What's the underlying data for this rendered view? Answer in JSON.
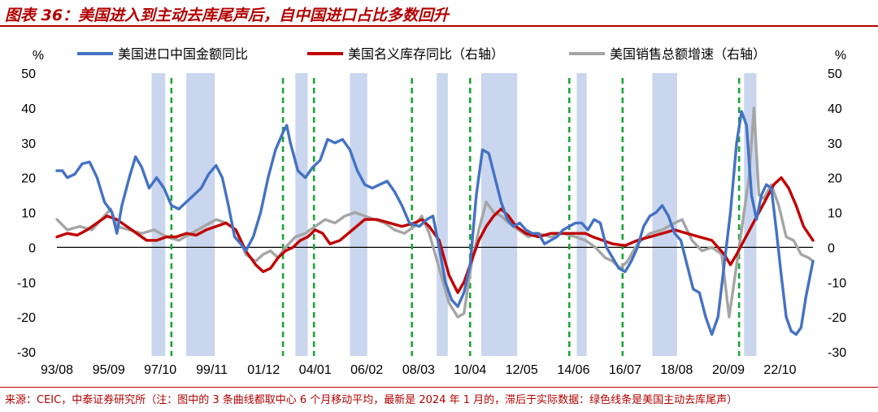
{
  "header": {
    "title": "图表 36：美国进入到主动去库尾声后，自中国进口占比多数回升"
  },
  "footer": {
    "source": "来源：CEIC，中泰证券研究所（注：图中的 3 条曲线都取中心 6 个月移动平均，最新是 2024 年 1 月的，滞后于实际数据：绿色线条是美国主动去库尾声）"
  },
  "chart_data": {
    "type": "line",
    "title": "",
    "left_unit": "%",
    "right_unit": "%",
    "ylim": [
      -30,
      50
    ],
    "y2lim": [
      -30,
      50
    ],
    "y_ticks": [
      50,
      40,
      30,
      20,
      10,
      0,
      -10,
      -20,
      -30
    ],
    "y2_ticks": [
      50,
      40,
      30,
      20,
      10,
      0,
      -10,
      -20,
      -30
    ],
    "xlim": [
      1993.58,
      2024.08
    ],
    "x_tick_labels": [
      {
        "label": "93/08",
        "x": 1993.58
      },
      {
        "label": "95/09",
        "x": 1995.67
      },
      {
        "label": "97/10",
        "x": 1997.75
      },
      {
        "label": "99/11",
        "x": 1999.83
      },
      {
        "label": "01/12",
        "x": 2001.92
      },
      {
        "label": "04/01",
        "x": 2004.0
      },
      {
        "label": "06/02",
        "x": 2006.08
      },
      {
        "label": "08/03",
        "x": 2008.17
      },
      {
        "label": "10/04",
        "x": 2010.25
      },
      {
        "label": "12/05",
        "x": 2012.33
      },
      {
        "label": "14/06",
        "x": 2014.42
      },
      {
        "label": "16/07",
        "x": 2016.5
      },
      {
        "label": "18/08",
        "x": 2018.58
      },
      {
        "label": "20/09",
        "x": 2020.67
      },
      {
        "label": "22/10",
        "x": 2022.75
      }
    ],
    "shaded_periods": [
      [
        1997.4,
        1997.95
      ],
      [
        1998.8,
        1999.95
      ],
      [
        2003.2,
        2003.7
      ],
      [
        2005.4,
        2006.1
      ],
      [
        2008.9,
        2009.35
      ],
      [
        2010.7,
        2012.15
      ],
      [
        2014.55,
        2014.95
      ],
      [
        2017.6,
        2018.6
      ],
      [
        2021.3,
        2021.8
      ]
    ],
    "green_dashed_lines": [
      1998.2,
      2002.7,
      2003.95,
      2007.9,
      2010.25,
      2014.25,
      2016.4,
      2021.1
    ],
    "series": [
      {
        "name": "美国进口中国金额同比",
        "axis": "left",
        "color": "#4472c4",
        "points": [
          [
            1993.58,
            22
          ],
          [
            1993.8,
            22
          ],
          [
            1994.0,
            20
          ],
          [
            1994.3,
            21
          ],
          [
            1994.6,
            24
          ],
          [
            1994.9,
            24.5
          ],
          [
            1995.2,
            20
          ],
          [
            1995.5,
            13
          ],
          [
            1995.8,
            10
          ],
          [
            1996.0,
            4
          ],
          [
            1996.2,
            12
          ],
          [
            1996.5,
            20
          ],
          [
            1996.75,
            26
          ],
          [
            1997.0,
            23
          ],
          [
            1997.3,
            17
          ],
          [
            1997.6,
            20
          ],
          [
            1997.9,
            17
          ],
          [
            1998.2,
            12
          ],
          [
            1998.5,
            11
          ],
          [
            1998.8,
            13
          ],
          [
            1999.1,
            15
          ],
          [
            1999.4,
            17
          ],
          [
            1999.7,
            21
          ],
          [
            2000.0,
            23.5
          ],
          [
            2000.25,
            20
          ],
          [
            2000.5,
            12
          ],
          [
            2000.75,
            3
          ],
          [
            2001.0,
            1
          ],
          [
            2001.2,
            -1
          ],
          [
            2001.5,
            3
          ],
          [
            2001.8,
            10
          ],
          [
            2002.1,
            20
          ],
          [
            2002.4,
            28
          ],
          [
            2002.7,
            33
          ],
          [
            2002.85,
            35
          ],
          [
            2003.0,
            30
          ],
          [
            2003.3,
            22
          ],
          [
            2003.6,
            20
          ],
          [
            2003.9,
            23
          ],
          [
            2004.2,
            25
          ],
          [
            2004.5,
            31
          ],
          [
            2004.8,
            30
          ],
          [
            2005.1,
            31
          ],
          [
            2005.4,
            28
          ],
          [
            2005.7,
            22
          ],
          [
            2006.0,
            18
          ],
          [
            2006.3,
            17
          ],
          [
            2006.6,
            18
          ],
          [
            2006.9,
            19
          ],
          [
            2007.2,
            16
          ],
          [
            2007.5,
            12
          ],
          [
            2007.8,
            7
          ],
          [
            2008.2,
            6
          ],
          [
            2008.5,
            8
          ],
          [
            2008.75,
            9
          ],
          [
            2009.0,
            0
          ],
          [
            2009.25,
            -10
          ],
          [
            2009.5,
            -15
          ],
          [
            2009.75,
            -17
          ],
          [
            2010.0,
            -13
          ],
          [
            2010.25,
            -5
          ],
          [
            2010.5,
            15
          ],
          [
            2010.75,
            28
          ],
          [
            2011.0,
            27
          ],
          [
            2011.25,
            20
          ],
          [
            2011.5,
            13
          ],
          [
            2011.75,
            8
          ],
          [
            2012.0,
            6
          ],
          [
            2012.25,
            7
          ],
          [
            2012.5,
            5
          ],
          [
            2012.75,
            4
          ],
          [
            2013.0,
            4
          ],
          [
            2013.25,
            1
          ],
          [
            2013.5,
            2
          ],
          [
            2013.75,
            3
          ],
          [
            2014.0,
            5
          ],
          [
            2014.25,
            6
          ],
          [
            2014.5,
            7
          ],
          [
            2014.75,
            7
          ],
          [
            2015.0,
            5
          ],
          [
            2015.25,
            8
          ],
          [
            2015.5,
            7
          ],
          [
            2015.75,
            0
          ],
          [
            2016.0,
            -3
          ],
          [
            2016.25,
            -6
          ],
          [
            2016.5,
            -7
          ],
          [
            2016.75,
            -4
          ],
          [
            2017.0,
            0
          ],
          [
            2017.25,
            6
          ],
          [
            2017.5,
            9
          ],
          [
            2017.75,
            10
          ],
          [
            2018.0,
            12
          ],
          [
            2018.25,
            9
          ],
          [
            2018.5,
            4
          ],
          [
            2018.75,
            2
          ],
          [
            2019.0,
            -5
          ],
          [
            2019.25,
            -12
          ],
          [
            2019.5,
            -13
          ],
          [
            2019.75,
            -20
          ],
          [
            2020.0,
            -25
          ],
          [
            2020.25,
            -20
          ],
          [
            2020.5,
            -5
          ],
          [
            2020.75,
            10
          ],
          [
            2021.0,
            30
          ],
          [
            2021.2,
            39
          ],
          [
            2021.4,
            35
          ],
          [
            2021.6,
            15
          ],
          [
            2021.8,
            8
          ],
          [
            2022.0,
            15
          ],
          [
            2022.2,
            18
          ],
          [
            2022.4,
            17
          ],
          [
            2022.6,
            5
          ],
          [
            2022.8,
            -8
          ],
          [
            2023.0,
            -20
          ],
          [
            2023.2,
            -24
          ],
          [
            2023.4,
            -25
          ],
          [
            2023.6,
            -23
          ],
          [
            2023.8,
            -14
          ],
          [
            2024.08,
            -4
          ]
        ]
      },
      {
        "name": "美国名义库存同比（右轴）",
        "axis": "right",
        "color": "#c00000",
        "points": [
          [
            1993.58,
            3
          ],
          [
            1994.0,
            4
          ],
          [
            1994.4,
            3.5
          ],
          [
            1994.8,
            5
          ],
          [
            1995.2,
            7
          ],
          [
            1995.6,
            9
          ],
          [
            1996.0,
            8
          ],
          [
            1996.4,
            6
          ],
          [
            1996.8,
            4
          ],
          [
            1997.2,
            2
          ],
          [
            1997.6,
            2
          ],
          [
            1998.0,
            3
          ],
          [
            1998.4,
            3
          ],
          [
            1998.8,
            4
          ],
          [
            1999.2,
            3.5
          ],
          [
            1999.6,
            5
          ],
          [
            2000.0,
            6
          ],
          [
            2000.4,
            7
          ],
          [
            2000.8,
            5
          ],
          [
            2001.2,
            -1
          ],
          [
            2001.6,
            -5
          ],
          [
            2001.9,
            -7
          ],
          [
            2002.2,
            -6
          ],
          [
            2002.5,
            -3
          ],
          [
            2002.8,
            -1
          ],
          [
            2003.1,
            0
          ],
          [
            2003.4,
            2
          ],
          [
            2003.7,
            3
          ],
          [
            2004.0,
            5
          ],
          [
            2004.3,
            4
          ],
          [
            2004.6,
            1
          ],
          [
            2005.0,
            2
          ],
          [
            2005.5,
            5
          ],
          [
            2006.0,
            8
          ],
          [
            2006.5,
            8
          ],
          [
            2007.0,
            7
          ],
          [
            2007.5,
            6
          ],
          [
            2008.0,
            7
          ],
          [
            2008.3,
            8
          ],
          [
            2008.6,
            6
          ],
          [
            2009.0,
            2
          ],
          [
            2009.4,
            -8
          ],
          [
            2009.75,
            -13
          ],
          [
            2010.0,
            -10
          ],
          [
            2010.3,
            -4
          ],
          [
            2010.6,
            2
          ],
          [
            2010.9,
            6
          ],
          [
            2011.2,
            9
          ],
          [
            2011.5,
            11
          ],
          [
            2011.8,
            9
          ],
          [
            2012.1,
            6
          ],
          [
            2012.5,
            4
          ],
          [
            2013.0,
            3
          ],
          [
            2013.5,
            4
          ],
          [
            2014.0,
            4
          ],
          [
            2014.5,
            4
          ],
          [
            2014.9,
            4
          ],
          [
            2015.2,
            3
          ],
          [
            2015.6,
            2
          ],
          [
            2016.0,
            1
          ],
          [
            2016.5,
            0.5
          ],
          [
            2017.0,
            2
          ],
          [
            2017.5,
            3
          ],
          [
            2018.0,
            4
          ],
          [
            2018.5,
            5
          ],
          [
            2019.0,
            4
          ],
          [
            2019.5,
            3
          ],
          [
            2020.0,
            2
          ],
          [
            2020.5,
            -2
          ],
          [
            2020.75,
            -5
          ],
          [
            2021.0,
            -2
          ],
          [
            2021.3,
            2
          ],
          [
            2021.6,
            6
          ],
          [
            2021.9,
            10
          ],
          [
            2022.2,
            14
          ],
          [
            2022.5,
            18
          ],
          [
            2022.8,
            20
          ],
          [
            2023.1,
            17
          ],
          [
            2023.4,
            12
          ],
          [
            2023.7,
            6
          ],
          [
            2024.08,
            2
          ]
        ]
      },
      {
        "name": "美国销售总额增速（右轴）",
        "axis": "right",
        "color": "#a5a5a5",
        "points": [
          [
            1993.58,
            8
          ],
          [
            1994.0,
            5
          ],
          [
            1994.5,
            6
          ],
          [
            1995.0,
            5
          ],
          [
            1995.5,
            9
          ],
          [
            1995.75,
            11
          ],
          [
            1996.0,
            6
          ],
          [
            1996.5,
            5
          ],
          [
            1997.0,
            4
          ],
          [
            1997.5,
            5
          ],
          [
            1998.0,
            3
          ],
          [
            1998.5,
            2
          ],
          [
            1999.0,
            4
          ],
          [
            1999.5,
            6
          ],
          [
            2000.0,
            8
          ],
          [
            2000.4,
            7
          ],
          [
            2000.8,
            5
          ],
          [
            2001.2,
            -2
          ],
          [
            2001.6,
            -4
          ],
          [
            2001.9,
            -2
          ],
          [
            2002.2,
            -1
          ],
          [
            2002.5,
            -3
          ],
          [
            2002.8,
            0
          ],
          [
            2003.2,
            3
          ],
          [
            2003.6,
            4
          ],
          [
            2004.0,
            6
          ],
          [
            2004.4,
            8
          ],
          [
            2004.8,
            7
          ],
          [
            2005.2,
            9
          ],
          [
            2005.6,
            10
          ],
          [
            2006.0,
            9
          ],
          [
            2006.4,
            8
          ],
          [
            2006.8,
            7
          ],
          [
            2007.2,
            5
          ],
          [
            2007.6,
            4
          ],
          [
            2008.0,
            6
          ],
          [
            2008.3,
            9
          ],
          [
            2008.6,
            4
          ],
          [
            2009.0,
            -6
          ],
          [
            2009.4,
            -16
          ],
          [
            2009.75,
            -20
          ],
          [
            2010.0,
            -19
          ],
          [
            2010.3,
            -5
          ],
          [
            2010.6,
            5
          ],
          [
            2010.9,
            13
          ],
          [
            2011.2,
            10
          ],
          [
            2011.5,
            9
          ],
          [
            2011.8,
            7
          ],
          [
            2012.2,
            5
          ],
          [
            2012.6,
            3
          ],
          [
            2013.0,
            4
          ],
          [
            2013.5,
            3
          ],
          [
            2014.0,
            4
          ],
          [
            2014.5,
            3
          ],
          [
            2014.9,
            2
          ],
          [
            2015.3,
            0
          ],
          [
            2015.7,
            -3
          ],
          [
            2016.0,
            -4
          ],
          [
            2016.3,
            -6
          ],
          [
            2016.6,
            -4
          ],
          [
            2017.0,
            1
          ],
          [
            2017.5,
            4
          ],
          [
            2018.0,
            5
          ],
          [
            2018.5,
            7
          ],
          [
            2018.8,
            8
          ],
          [
            2019.2,
            2
          ],
          [
            2019.6,
            -1
          ],
          [
            2020.0,
            0
          ],
          [
            2020.4,
            -2
          ],
          [
            2020.7,
            -20
          ],
          [
            2021.0,
            -5
          ],
          [
            2021.3,
            10
          ],
          [
            2021.5,
            20
          ],
          [
            2021.7,
            40
          ],
          [
            2021.9,
            15
          ],
          [
            2022.1,
            14
          ],
          [
            2022.4,
            18
          ],
          [
            2022.7,
            12
          ],
          [
            2023.0,
            3
          ],
          [
            2023.3,
            2
          ],
          [
            2023.6,
            -2
          ],
          [
            2023.9,
            -3
          ],
          [
            2024.08,
            -4
          ]
        ]
      }
    ]
  }
}
